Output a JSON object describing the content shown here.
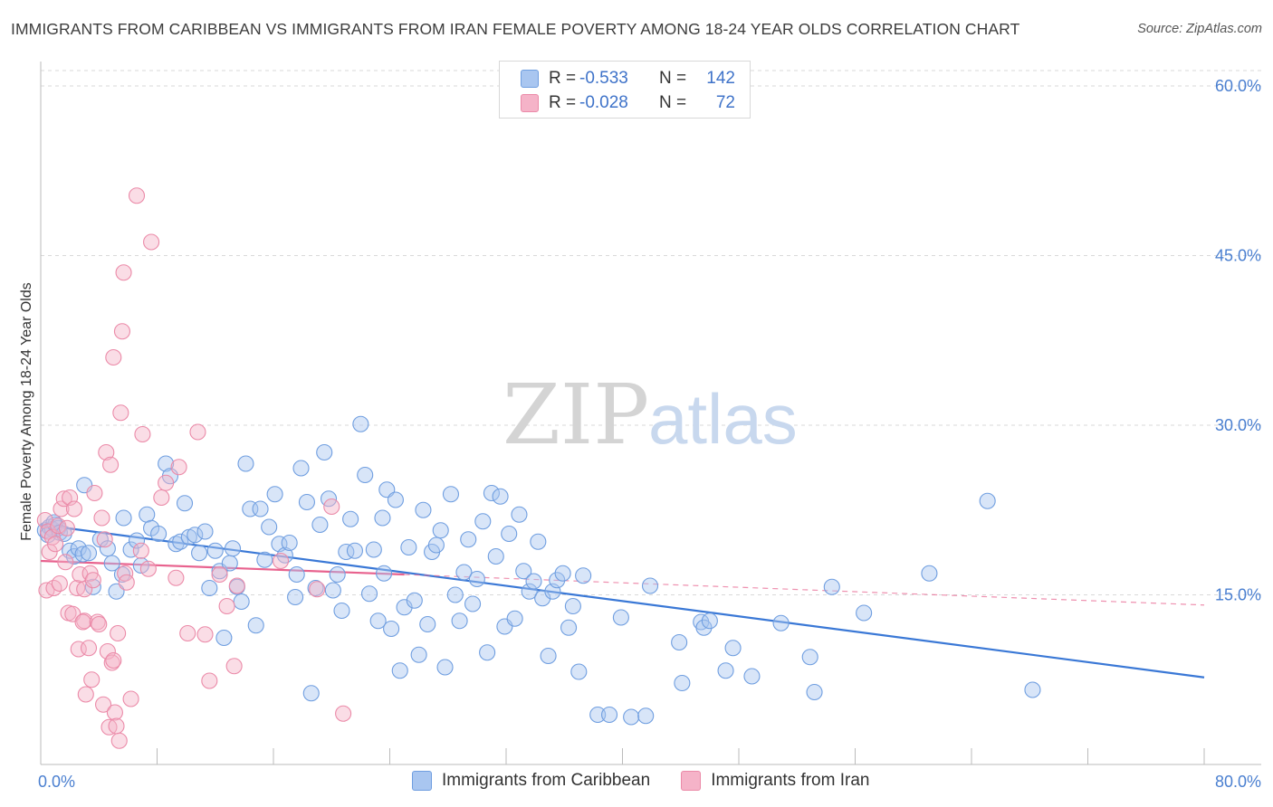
{
  "header": {
    "title": "IMMIGRANTS FROM CARIBBEAN VS IMMIGRANTS FROM IRAN FEMALE POVERTY AMONG 18-24 YEAR OLDS CORRELATION CHART",
    "source": "Source: ZipAtlas.com"
  },
  "watermark": {
    "zip": "ZIP",
    "atlas": "atlas"
  },
  "legend": {
    "row1": {
      "r_label": "R =",
      "r_value": "-0.533",
      "n_label": "N =",
      "n_value": "142"
    },
    "row2": {
      "r_label": "R =",
      "r_value": "-0.028",
      "n_label": "N =",
      "n_value": "72"
    }
  },
  "bottom_legend": {
    "series1": "Immigrants from Caribbean",
    "series2": "Immigrants from Iran"
  },
  "colors": {
    "blue_fill": "#a9c6f0",
    "blue_stroke": "#6f9ee0",
    "blue_line": "#3a78d6",
    "pink_fill": "#f5b3c8",
    "pink_stroke": "#eb8aa8",
    "pink_line": "#e8628e",
    "axis_text": "#4a7fd0",
    "grid": "#d9d9d9"
  },
  "chart_data": {
    "type": "scatter",
    "title": "IMMIGRANTS FROM CARIBBEAN VS IMMIGRANTS FROM IRAN FEMALE POVERTY AMONG 18-24 YEAR OLDS CORRELATION CHART",
    "xlabel": "",
    "ylabel": "Female Poverty Among 18-24 Year Olds",
    "xlim": [
      0,
      80
    ],
    "ylim": [
      0,
      60
    ],
    "x_tick_labels": [
      "0.0%",
      "80.0%"
    ],
    "y_ticks": [
      15,
      30,
      45,
      60
    ],
    "y_tick_labels": [
      "15.0%",
      "30.0%",
      "45.0%",
      "60.0%"
    ],
    "grid": true,
    "legend_position": "top-center",
    "series": [
      {
        "name": "Immigrants from Caribbean",
        "r": -0.533,
        "n": 142,
        "trend": {
          "x": [
            0,
            80
          ],
          "y": [
            21.2,
            7.7
          ]
        },
        "points": [
          [
            0.3,
            20.7
          ],
          [
            0.6,
            21.0
          ],
          [
            0.8,
            20.8
          ],
          [
            1.0,
            21.2
          ],
          [
            1.2,
            20.9
          ],
          [
            0.5,
            20.3
          ],
          [
            0.9,
            21.4
          ],
          [
            1.3,
            20.5
          ],
          [
            1.6,
            20.4
          ],
          [
            2.0,
            18.9
          ],
          [
            2.3,
            18.4
          ],
          [
            2.6,
            19.1
          ],
          [
            2.9,
            18.6
          ],
          [
            3.3,
            18.7
          ],
          [
            3.0,
            24.7
          ],
          [
            3.6,
            15.7
          ],
          [
            4.1,
            19.9
          ],
          [
            4.6,
            19.1
          ],
          [
            4.9,
            17.8
          ],
          [
            5.2,
            15.3
          ],
          [
            5.6,
            16.8
          ],
          [
            5.7,
            21.8
          ],
          [
            6.2,
            19.0
          ],
          [
            6.6,
            19.8
          ],
          [
            6.9,
            17.6
          ],
          [
            7.3,
            22.1
          ],
          [
            7.6,
            20.9
          ],
          [
            8.1,
            20.4
          ],
          [
            8.6,
            26.6
          ],
          [
            8.9,
            25.5
          ],
          [
            9.3,
            19.5
          ],
          [
            9.6,
            19.7
          ],
          [
            9.9,
            23.1
          ],
          [
            10.2,
            20.1
          ],
          [
            10.6,
            20.3
          ],
          [
            10.9,
            18.7
          ],
          [
            11.3,
            20.6
          ],
          [
            11.6,
            15.6
          ],
          [
            12.0,
            18.9
          ],
          [
            12.3,
            17.1
          ],
          [
            12.6,
            11.2
          ],
          [
            13.0,
            17.8
          ],
          [
            13.2,
            19.1
          ],
          [
            13.5,
            15.7
          ],
          [
            13.8,
            14.4
          ],
          [
            14.1,
            26.6
          ],
          [
            14.4,
            22.6
          ],
          [
            14.8,
            12.3
          ],
          [
            15.1,
            22.6
          ],
          [
            15.4,
            18.1
          ],
          [
            15.7,
            21.0
          ],
          [
            16.1,
            23.9
          ],
          [
            16.4,
            19.5
          ],
          [
            16.8,
            18.5
          ],
          [
            17.1,
            19.6
          ],
          [
            17.5,
            14.8
          ],
          [
            17.6,
            16.8
          ],
          [
            17.9,
            26.2
          ],
          [
            18.3,
            23.2
          ],
          [
            18.6,
            6.3
          ],
          [
            18.9,
            15.6
          ],
          [
            19.2,
            21.2
          ],
          [
            19.5,
            27.6
          ],
          [
            19.8,
            23.5
          ],
          [
            20.1,
            15.4
          ],
          [
            20.4,
            16.8
          ],
          [
            20.7,
            13.6
          ],
          [
            21.0,
            18.8
          ],
          [
            21.3,
            21.7
          ],
          [
            21.6,
            18.9
          ],
          [
            22.0,
            30.1
          ],
          [
            22.3,
            25.6
          ],
          [
            22.6,
            15.1
          ],
          [
            22.9,
            19.0
          ],
          [
            23.2,
            12.7
          ],
          [
            23.5,
            21.8
          ],
          [
            23.8,
            24.3
          ],
          [
            24.1,
            12.0
          ],
          [
            24.4,
            23.4
          ],
          [
            24.7,
            8.3
          ],
          [
            25.0,
            13.9
          ],
          [
            25.3,
            19.2
          ],
          [
            25.7,
            14.5
          ],
          [
            26.0,
            9.7
          ],
          [
            26.3,
            22.5
          ],
          [
            26.6,
            12.4
          ],
          [
            26.9,
            18.8
          ],
          [
            27.2,
            19.4
          ],
          [
            27.5,
            20.7
          ],
          [
            27.8,
            8.6
          ],
          [
            28.2,
            23.9
          ],
          [
            28.5,
            15.0
          ],
          [
            28.8,
            12.7
          ],
          [
            29.1,
            17.0
          ],
          [
            29.4,
            19.9
          ],
          [
            29.7,
            14.2
          ],
          [
            30.0,
            16.4
          ],
          [
            30.4,
            21.5
          ],
          [
            30.7,
            9.9
          ],
          [
            31.0,
            24.0
          ],
          [
            31.3,
            18.4
          ],
          [
            31.6,
            23.7
          ],
          [
            31.9,
            12.2
          ],
          [
            32.2,
            20.4
          ],
          [
            32.6,
            12.9
          ],
          [
            32.9,
            22.1
          ],
          [
            33.2,
            17.1
          ],
          [
            33.6,
            15.3
          ],
          [
            33.9,
            16.2
          ],
          [
            34.2,
            19.7
          ],
          [
            34.5,
            14.7
          ],
          [
            34.9,
            9.6
          ],
          [
            35.2,
            15.3
          ],
          [
            35.5,
            16.3
          ],
          [
            35.9,
            16.9
          ],
          [
            36.3,
            12.1
          ],
          [
            36.6,
            14.0
          ],
          [
            37.0,
            8.2
          ],
          [
            37.3,
            16.7
          ],
          [
            38.3,
            4.4
          ],
          [
            39.1,
            4.4
          ],
          [
            39.9,
            13.0
          ],
          [
            40.6,
            4.2
          ],
          [
            41.6,
            4.3
          ],
          [
            41.9,
            15.8
          ],
          [
            43.9,
            10.8
          ],
          [
            44.1,
            7.2
          ],
          [
            45.4,
            12.6
          ],
          [
            45.6,
            12.1
          ],
          [
            46.0,
            12.7
          ],
          [
            47.1,
            8.3
          ],
          [
            47.6,
            10.3
          ],
          [
            48.9,
            7.8
          ],
          [
            50.9,
            12.5
          ],
          [
            52.9,
            9.5
          ],
          [
            53.2,
            6.4
          ],
          [
            54.4,
            15.7
          ],
          [
            56.6,
            13.4
          ],
          [
            61.1,
            16.9
          ],
          [
            65.1,
            23.3
          ],
          [
            68.2,
            6.6
          ],
          [
            23.6,
            16.9
          ]
        ]
      },
      {
        "name": "Immigrants from Iran",
        "r": -0.028,
        "n": 72,
        "trend": {
          "x": [
            0,
            25
          ],
          "y": [
            18.0,
            16.8
          ],
          "dashed_extension": {
            "x": [
              25,
              80
            ],
            "y": [
              16.8,
              14.1
            ]
          }
        },
        "points": [
          [
            0.3,
            21.6
          ],
          [
            0.5,
            20.6
          ],
          [
            0.6,
            18.8
          ],
          [
            0.8,
            20.1
          ],
          [
            1.0,
            19.5
          ],
          [
            1.2,
            21.1
          ],
          [
            1.4,
            22.6
          ],
          [
            1.6,
            23.5
          ],
          [
            1.8,
            20.9
          ],
          [
            0.4,
            15.4
          ],
          [
            0.9,
            15.6
          ],
          [
            1.3,
            16.0
          ],
          [
            1.7,
            17.9
          ],
          [
            2.0,
            23.6
          ],
          [
            2.3,
            22.6
          ],
          [
            1.9,
            13.4
          ],
          [
            2.2,
            13.3
          ],
          [
            2.5,
            15.6
          ],
          [
            2.7,
            16.8
          ],
          [
            3.0,
            15.5
          ],
          [
            3.0,
            12.7
          ],
          [
            2.6,
            10.2
          ],
          [
            2.9,
            12.6
          ],
          [
            3.3,
            10.3
          ],
          [
            3.4,
            16.9
          ],
          [
            3.5,
            7.5
          ],
          [
            3.1,
            6.2
          ],
          [
            3.6,
            16.3
          ],
          [
            3.7,
            24.0
          ],
          [
            3.9,
            12.6
          ],
          [
            4.0,
            12.4
          ],
          [
            4.2,
            21.8
          ],
          [
            4.3,
            5.3
          ],
          [
            4.4,
            19.9
          ],
          [
            4.5,
            27.6
          ],
          [
            4.6,
            10.0
          ],
          [
            4.7,
            3.3
          ],
          [
            4.8,
            26.5
          ],
          [
            4.9,
            9.0
          ],
          [
            5.0,
            9.2
          ],
          [
            5.1,
            4.6
          ],
          [
            5.2,
            3.4
          ],
          [
            5.3,
            11.6
          ],
          [
            5.4,
            2.1
          ],
          [
            5.0,
            36.0
          ],
          [
            5.5,
            31.1
          ],
          [
            5.6,
            38.3
          ],
          [
            5.7,
            43.5
          ],
          [
            5.8,
            16.9
          ],
          [
            5.9,
            16.1
          ],
          [
            6.2,
            5.8
          ],
          [
            6.9,
            18.9
          ],
          [
            6.6,
            50.3
          ],
          [
            7.0,
            29.2
          ],
          [
            7.4,
            17.3
          ],
          [
            7.6,
            46.2
          ],
          [
            8.3,
            23.6
          ],
          [
            8.6,
            24.9
          ],
          [
            9.3,
            16.5
          ],
          [
            9.5,
            26.3
          ],
          [
            10.1,
            11.6
          ],
          [
            10.8,
            29.4
          ],
          [
            11.3,
            11.5
          ],
          [
            11.6,
            7.4
          ],
          [
            12.3,
            16.8
          ],
          [
            12.8,
            14.0
          ],
          [
            13.3,
            8.7
          ],
          [
            13.5,
            15.8
          ],
          [
            16.5,
            18.0
          ],
          [
            19.0,
            15.5
          ],
          [
            20.0,
            22.8
          ],
          [
            20.8,
            4.5
          ]
        ]
      }
    ]
  }
}
